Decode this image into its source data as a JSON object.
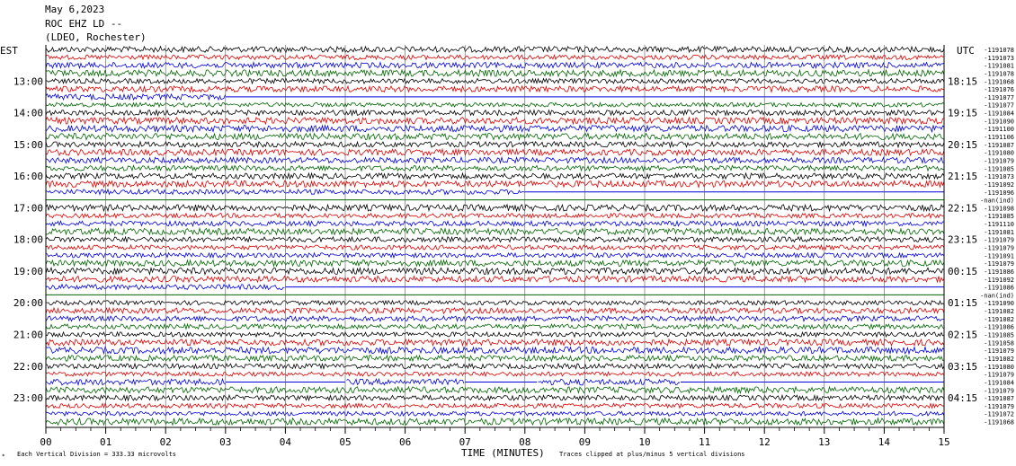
{
  "header": {
    "date": "May 6,2023",
    "station": "ROC EHZ LD --",
    "network": "(LDEO, Rochester)"
  },
  "chart_data": {
    "type": "line",
    "title": "May 6,2023",
    "left_timezone": "EST",
    "right_timezone": "UTC",
    "xlabel": "TIME (MINUTES)",
    "x_ticks": [
      "00",
      "01",
      "02",
      "03",
      "04",
      "05",
      "06",
      "07",
      "08",
      "09",
      "10",
      "11",
      "12",
      "13",
      "14",
      "15"
    ],
    "xlim": [
      0,
      15
    ],
    "left_hour_labels": [
      "13:00",
      "14:00",
      "15:00",
      "16:00",
      "17:00",
      "18:00",
      "19:00",
      "20:00",
      "21:00",
      "22:00",
      "23:00"
    ],
    "right_hour_labels": [
      "18:15",
      "19:15",
      "20:15",
      "21:15",
      "22:15",
      "23:15",
      "00:15",
      "01:15",
      "02:15",
      "03:15",
      "04:15"
    ],
    "trace_colors": [
      "#000000",
      "#dd0000",
      "#0000dd",
      "#006600"
    ],
    "trace_count": 48,
    "trace_offsets": [
      "-1191078",
      "-1191073",
      "-1191081",
      "-1191078",
      "-1191068",
      "-1191076",
      "-1191077",
      "-1191077",
      "-1191084",
      "-1191090",
      "-1191100",
      "-1191106",
      "-1191087",
      "-1191080",
      "-1191079",
      "-1191085",
      "-1191073",
      "-1191092",
      "-1191096",
      "-nan(ind)",
      "-1191098",
      "-1191085",
      "-1191110",
      "-1191081",
      "-1191079",
      "-1191079",
      "-1191091",
      "-1191079",
      "-1191086",
      "-1191092",
      "-1191086",
      "-nan(ind)",
      "-1191090",
      "-1191082",
      "-1191082",
      "-1191086",
      "-1191085",
      "-1191058",
      "-1191079",
      "-1191082",
      "-1191080",
      "-1191079",
      "-1191084",
      "-1191079",
      "-1191087",
      "-1191079",
      "-1191072",
      "-1191068"
    ],
    "data_gaps": [
      {
        "trace": 6,
        "start_min": 3.0,
        "end_min": 15.0
      },
      {
        "trace": 18,
        "start_min": 8.0,
        "end_min": 15.0
      },
      {
        "trace": 19,
        "start_min": 0.0,
        "end_min": 15.0
      },
      {
        "trace": 30,
        "start_min": 4.0,
        "end_min": 15.0
      },
      {
        "trace": 31,
        "start_min": 0.0,
        "end_min": 15.0
      },
      {
        "trace": 42,
        "start_min": 3.0,
        "end_min": 5.0
      },
      {
        "trace": 42,
        "start_min": 7.0,
        "end_min": 8.2
      },
      {
        "trace": 42,
        "start_min": 10.6,
        "end_min": 15.0
      }
    ],
    "footer_left": "Each Vertical Division =  333.33 microvolts",
    "footer_right": "Traces clipped at plus/minus 5 vertical divisions"
  }
}
